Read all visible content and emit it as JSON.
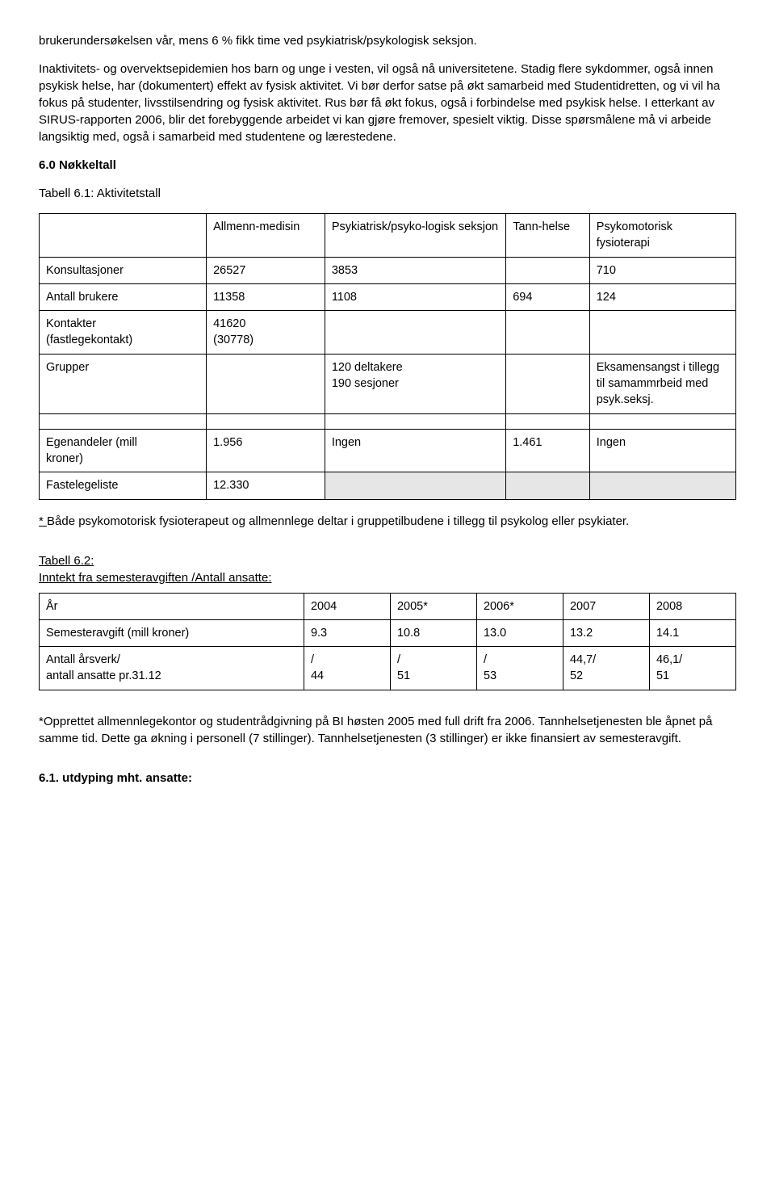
{
  "para1": "brukerundersøkelsen vår, mens 6 % fikk time ved psykiatrisk/psykologisk seksjon.",
  "para2": "Inaktivitets- og overvektsepidemien hos barn og unge i vesten, vil også nå universitetene. Stadig flere sykdommer, også innen psykisk helse, har (dokumentert) effekt av fysisk aktivitet. Vi bør derfor satse på økt samarbeid med Studentidretten, og vi vil ha fokus på studenter, livsstilsendring og fysisk aktivitet.  Rus bør få økt fokus, også i forbindelse med psykisk helse. I etterkant av SIRUS-rapporten 2006, blir det forebyggende arbeidet vi kan gjøre fremover, spesielt viktig.  Disse spørsmålene må vi arbeide langsiktig med, også i samarbeid med studentene og lærestedene.",
  "h60": "6.0 Nøkkeltall",
  "t61_caption": "Tabell 6.1: Aktivitetstall",
  "t61": {
    "h2": "Allmenn-medisin",
    "h3": "Psykiatrisk/psyko-logisk seksjon",
    "h4": "Tann-helse",
    "h5": "Psykomotorisk fysioterapi",
    "r1c1": "Konsultasjoner",
    "r1c2": "26527",
    "r1c3": "3853",
    "r1c4": "",
    "r1c5": "710",
    "r2c1": "Antall brukere",
    "r2c2": "11358",
    "r2c3": "1108",
    "r2c4": "694",
    "r2c5": "124",
    "r3c1a": "Kontakter",
    "r3c1b": "(fastlegekontakt)",
    "r3c2a": "41620",
    "r3c2b": "(30778)",
    "r4c1": "Grupper",
    "r4c3a": "120 deltakere",
    "r4c3b": "190  sesjoner",
    "r4c5": "Eksamensangst i tillegg til samammrbeid med psyk.seksj.",
    "r5c1a": "Egenandeler (mill",
    "r5c1b": "kroner)",
    "r5c2": "1.956",
    "r5c3": "Ingen",
    "r5c4": "1.461",
    "r5c5": "Ingen",
    "r6c1": "Fastelegeliste",
    "r6c2": "12.330"
  },
  "t61_note_pre": "* ",
  "t61_note": "Både psykomotorisk fysioterapeut og allmennlege deltar i gruppetilbudene i tillegg til psykolog eller psykiater.",
  "t62_caption1": "Tabell 6.2:",
  "t62_caption2": "Inntekt fra semesteravgiften /Antall ansatte:",
  "t62": {
    "h1": "År",
    "h2": "2004",
    "h3": "2005*",
    "h4": "2006*",
    "h5": "2007",
    "h6": "2008",
    "r1c1": "Semesteravgift (mill kroner)",
    "r1c2": "9.3",
    "r1c3": "10.8",
    "r1c4": "13.0",
    "r1c5": "13.2",
    "r1c6": "14.1",
    "r2c1a": "Antall årsverk/",
    "r2c1b": "antall ansatte pr.31.12",
    "r2c2a": "/",
    "r2c2b": "44",
    "r2c3a": "/",
    "r2c3b": "51",
    "r2c4a": "/",
    "r2c4b": "53",
    "r2c5a": "44,7/",
    "r2c5b": "52",
    "r2c6a": "46,1/",
    "r2c6b": "51"
  },
  "para3": "*Opprettet allmennlegekontor og studentrådgivning på BI høsten 2005 med full drift fra 2006. Tannhelsetjenesten ble åpnet på samme tid.  Dette ga økning i personell (7 stillinger). Tannhelsetjenesten (3 stillinger) er ikke finansiert av semesteravgift.",
  "h61": "6.1. utdyping mht. ansatte:"
}
